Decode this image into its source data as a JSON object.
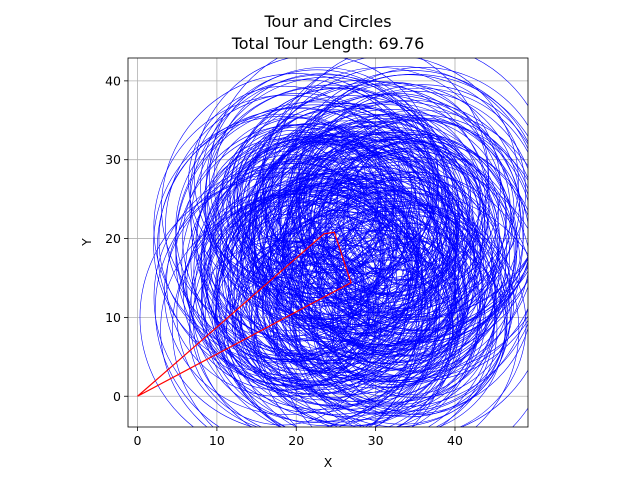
{
  "chart_data": {
    "type": "line",
    "title": "Tour and Circles",
    "subtitle": "Total Tour Length: 69.76",
    "xlabel": "X",
    "ylabel": "Y",
    "xlim": [
      -1.2,
      49.2
    ],
    "ylim": [
      -3.9,
      42.9
    ],
    "x_ticks": [
      0,
      10,
      20,
      30,
      40
    ],
    "y_ticks": [
      0,
      10,
      20,
      30,
      40
    ],
    "grid": true,
    "series": [
      {
        "color": "#ff0000",
        "x": [
          0,
          23.5,
          24.8,
          26.9,
          0
        ],
        "y": [
          0,
          20.6,
          20.8,
          14.4,
          0
        ]
      }
    ],
    "circles": {
      "color": "#0000ff",
      "count": 300,
      "center_x_range": [
        18,
        36
      ],
      "center_y_range": [
        8,
        28
      ],
      "radius_range": [
        6,
        18
      ]
    }
  }
}
